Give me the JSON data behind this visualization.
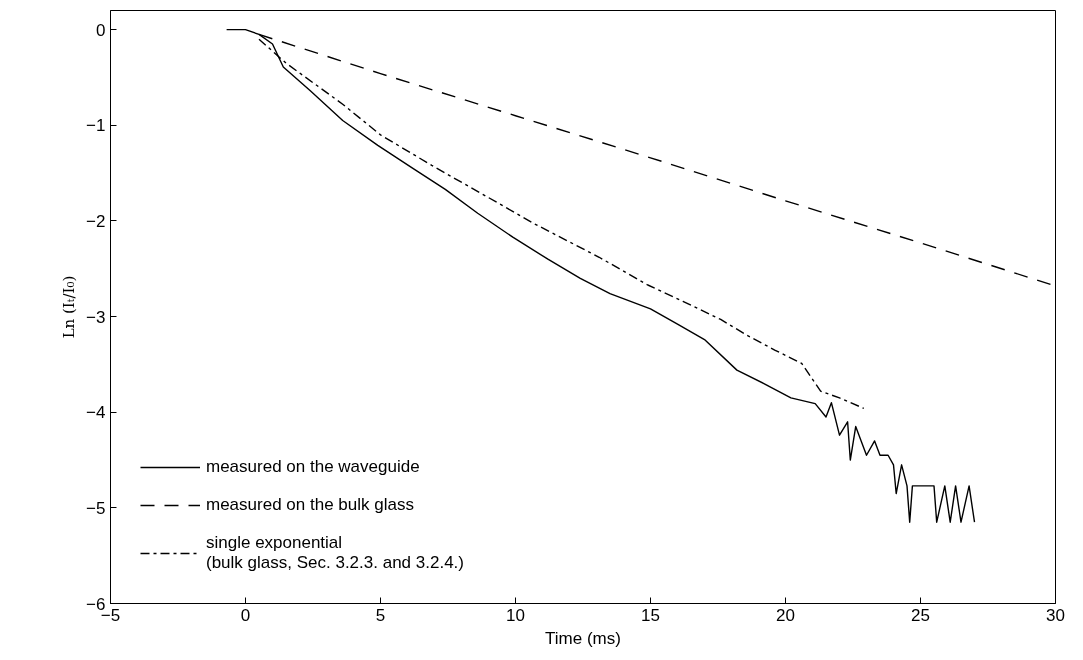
{
  "chart_data": {
    "type": "line",
    "xlabel": "Time (ms)",
    "ylabel": "Ln (Iₜ/I₀)",
    "xlim": [
      -5,
      30
    ],
    "ylim": [
      -6,
      0.2
    ],
    "xticks": [
      -5,
      0,
      5,
      10,
      15,
      20,
      25,
      30
    ],
    "yticks": [
      -6,
      -5,
      -4,
      -3,
      -2,
      -1,
      0
    ],
    "grid": false,
    "legend": "bottom left",
    "series": [
      {
        "name": "measured on the waveguide",
        "color": "#000000",
        "line_style": "solid",
        "x": [
          -0.7,
          0,
          0.5,
          1,
          1.4,
          2.4,
          3.6,
          4.9,
          6.2,
          7.4,
          8.6,
          9.9,
          11.2,
          12.4,
          13.5,
          15,
          16,
          17,
          18.2,
          19.2,
          20.2,
          21.1,
          21.5,
          21.7,
          22.0,
          22.3,
          22.4,
          22.6,
          23.0,
          23.3,
          23.5,
          23.8,
          24.0,
          24.1,
          24.3,
          24.5,
          24.6,
          24.7,
          25.5,
          25.6,
          25.9,
          26.1,
          26.3,
          26.5,
          26.8,
          27.0
        ],
        "values": [
          0,
          0,
          -0.05,
          -0.15,
          -0.39,
          -0.64,
          -0.95,
          -1.21,
          -1.45,
          -1.67,
          -1.92,
          -2.17,
          -2.4,
          -2.6,
          -2.76,
          -2.92,
          -3.08,
          -3.24,
          -3.56,
          -3.7,
          -3.85,
          -3.91,
          -4.05,
          -3.9,
          -4.24,
          -4.1,
          -4.5,
          -4.15,
          -4.45,
          -4.3,
          -4.45,
          -4.45,
          -4.55,
          -4.85,
          -4.55,
          -4.77,
          -5.15,
          -4.77,
          -4.77,
          -5.15,
          -4.77,
          -5.15,
          -4.77,
          -5.15,
          -4.77,
          -5.15
        ]
      },
      {
        "name": "measured on the bulk glass",
        "color": "#000000",
        "line_style": "dashed",
        "x": [
          0.5,
          5,
          10,
          15,
          20,
          25,
          30
        ],
        "values": [
          -0.05,
          -0.46,
          -0.9,
          -1.34,
          -1.79,
          -2.23,
          -2.68
        ]
      },
      {
        "name": "single exponential\n(bulk glass, Sec. 3.2.3. and 3.2.4.)",
        "color": "#000000",
        "line_style": "dashdot",
        "x": [
          0.5,
          1.5,
          3.6,
          5,
          6.9,
          8.9,
          10.7,
          13.1,
          14.9,
          16.2,
          17.6,
          18.6,
          19.6,
          20.6,
          21.3,
          22.0,
          22.9
        ],
        "values": [
          -0.1,
          -0.35,
          -0.78,
          -1.1,
          -1.42,
          -1.74,
          -2.03,
          -2.38,
          -2.67,
          -2.84,
          -3.03,
          -3.2,
          -3.35,
          -3.49,
          -3.78,
          -3.85,
          -3.96
        ]
      }
    ]
  }
}
